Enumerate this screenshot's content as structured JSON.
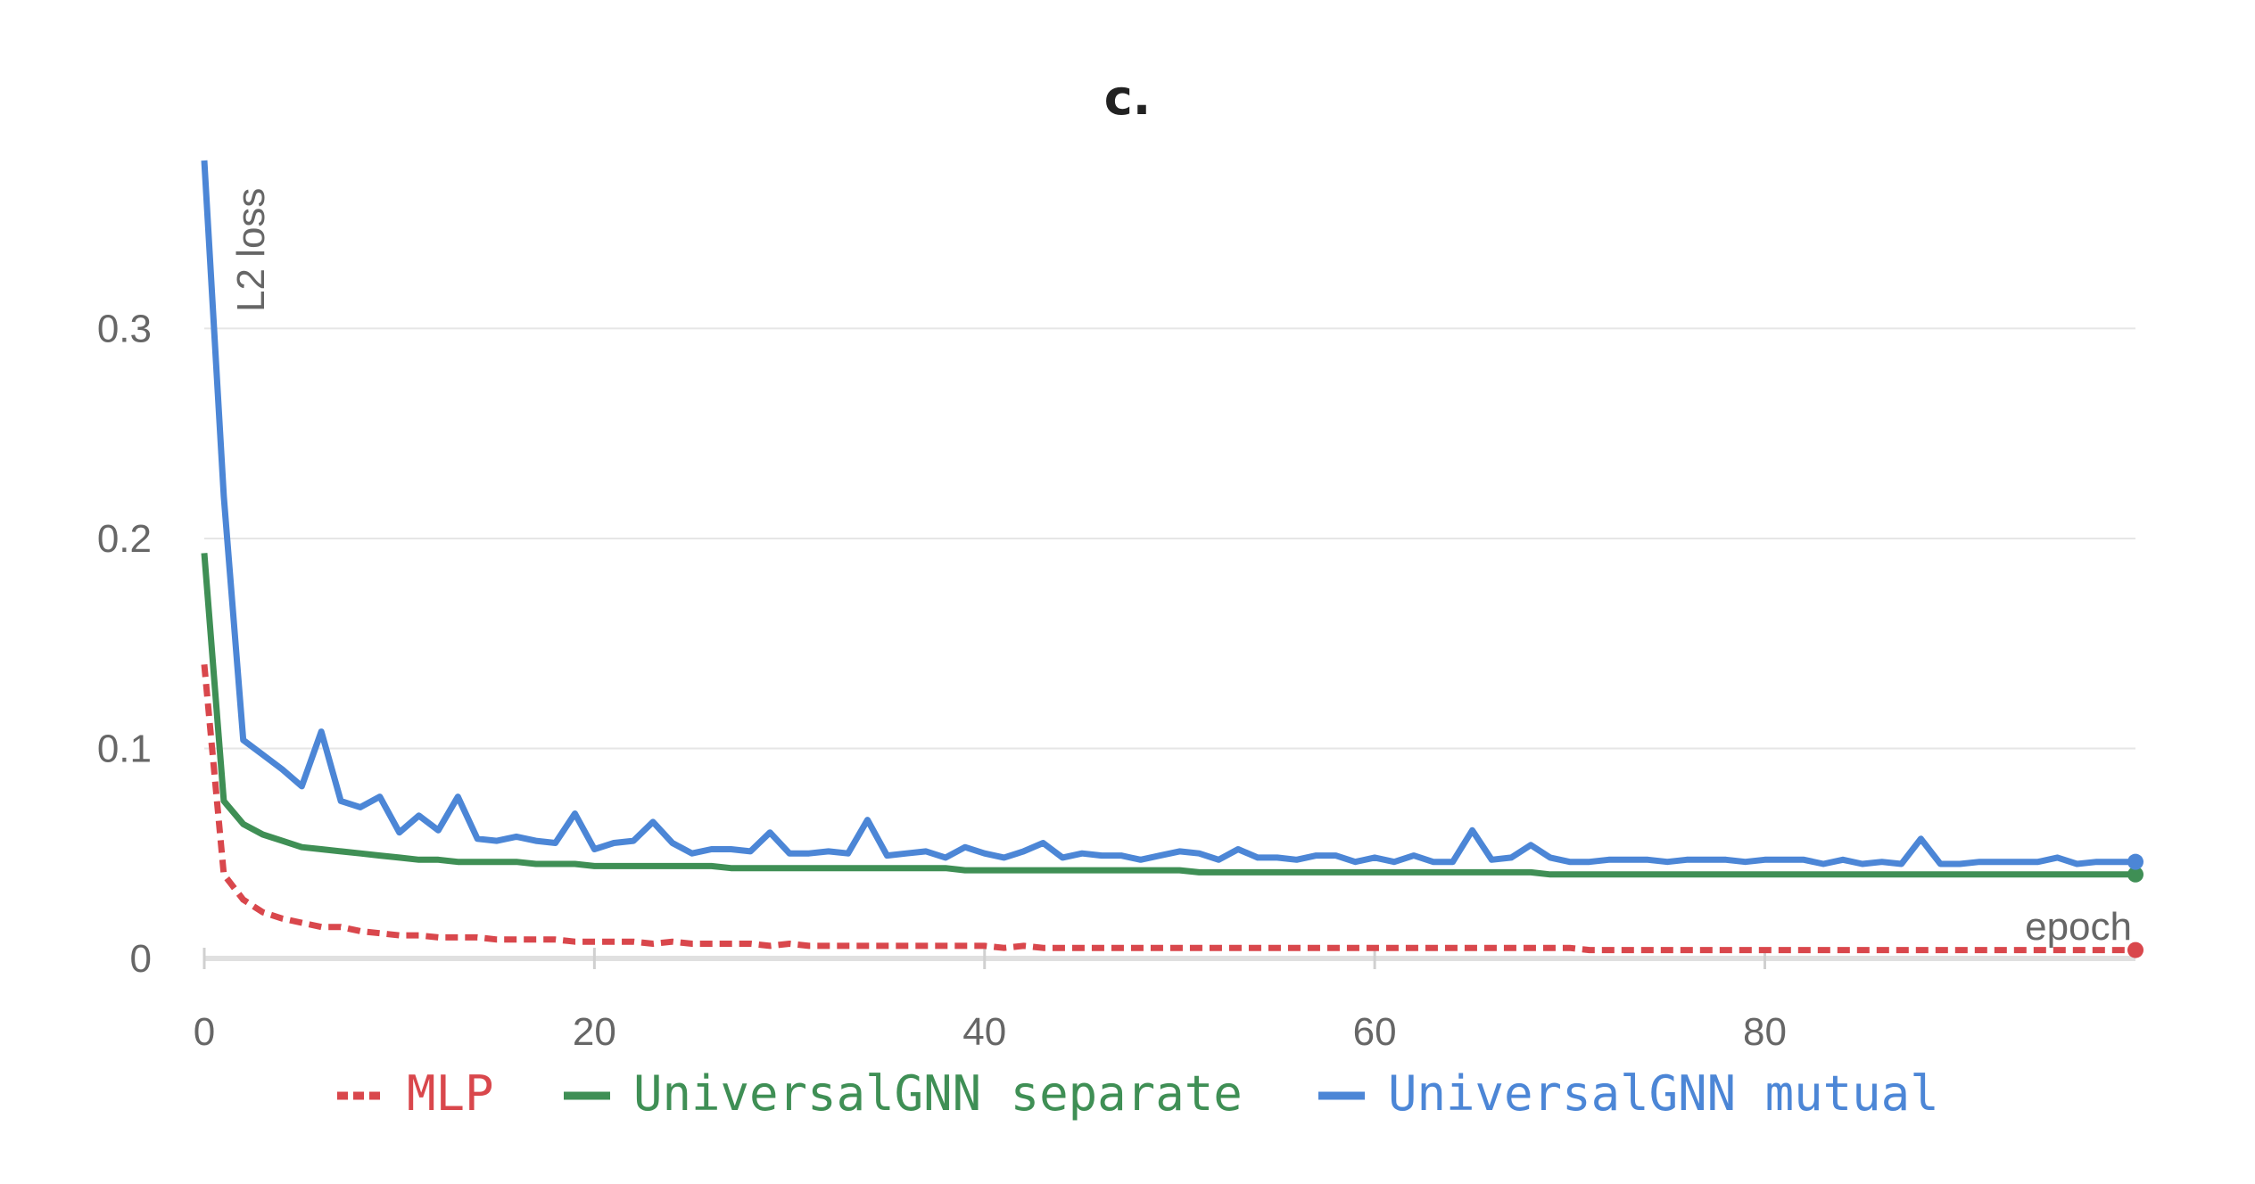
{
  "chart_data": {
    "type": "line",
    "title": "c.",
    "xlabel": "epoch",
    "ylabel": "L2 loss",
    "xlim": [
      0,
      99
    ],
    "ylim": [
      0,
      0.38
    ],
    "xticks": [
      0,
      20,
      40,
      60,
      80
    ],
    "xtick_labels": [
      "0",
      "20",
      "40",
      "60",
      "80"
    ],
    "yticks": [
      0,
      0.1,
      0.2,
      0.3
    ],
    "ytick_labels": [
      "0",
      "0.1",
      "0.2",
      "0.3"
    ],
    "grid": true,
    "legend_position": "bottom",
    "series": [
      {
        "name": "MLP",
        "color": "#d9474c",
        "dash": "dotted",
        "values": [
          0.14,
          0.04,
          0.028,
          0.022,
          0.019,
          0.017,
          0.015,
          0.015,
          0.013,
          0.012,
          0.011,
          0.011,
          0.01,
          0.01,
          0.01,
          0.009,
          0.009,
          0.009,
          0.009,
          0.008,
          0.008,
          0.008,
          0.008,
          0.007,
          0.008,
          0.007,
          0.007,
          0.007,
          0.007,
          0.006,
          0.007,
          0.006,
          0.006,
          0.006,
          0.006,
          0.006,
          0.006,
          0.006,
          0.006,
          0.006,
          0.006,
          0.005,
          0.006,
          0.005,
          0.005,
          0.005,
          0.005,
          0.005,
          0.005,
          0.005,
          0.005,
          0.005,
          0.005,
          0.005,
          0.005,
          0.005,
          0.005,
          0.005,
          0.005,
          0.005,
          0.005,
          0.005,
          0.005,
          0.005,
          0.005,
          0.005,
          0.005,
          0.005,
          0.005,
          0.005,
          0.005,
          0.004,
          0.004,
          0.004,
          0.004,
          0.004,
          0.004,
          0.004,
          0.004,
          0.004,
          0.004,
          0.004,
          0.004,
          0.004,
          0.004,
          0.004,
          0.004,
          0.004,
          0.004,
          0.004,
          0.004,
          0.004,
          0.004,
          0.004,
          0.004,
          0.004,
          0.004,
          0.004,
          0.004,
          0.004
        ]
      },
      {
        "name": "UniversalGNN separate",
        "color": "#3f8f55",
        "dash": "solid",
        "values": [
          0.193,
          0.075,
          0.064,
          0.059,
          0.056,
          0.053,
          0.052,
          0.051,
          0.05,
          0.049,
          0.048,
          0.047,
          0.047,
          0.046,
          0.046,
          0.046,
          0.046,
          0.045,
          0.045,
          0.045,
          0.044,
          0.044,
          0.044,
          0.044,
          0.044,
          0.044,
          0.044,
          0.043,
          0.043,
          0.043,
          0.043,
          0.043,
          0.043,
          0.043,
          0.043,
          0.043,
          0.043,
          0.043,
          0.043,
          0.042,
          0.042,
          0.042,
          0.042,
          0.042,
          0.042,
          0.042,
          0.042,
          0.042,
          0.042,
          0.042,
          0.042,
          0.041,
          0.041,
          0.041,
          0.041,
          0.041,
          0.041,
          0.041,
          0.041,
          0.041,
          0.041,
          0.041,
          0.041,
          0.041,
          0.041,
          0.041,
          0.041,
          0.041,
          0.041,
          0.04,
          0.04,
          0.04,
          0.04,
          0.04,
          0.04,
          0.04,
          0.04,
          0.04,
          0.04,
          0.04,
          0.04,
          0.04,
          0.04,
          0.04,
          0.04,
          0.04,
          0.04,
          0.04,
          0.04,
          0.04,
          0.04,
          0.04,
          0.04,
          0.04,
          0.04,
          0.04,
          0.04,
          0.04,
          0.04,
          0.04
        ]
      },
      {
        "name": "UniversalGNN mutual",
        "color": "#4c86d6",
        "dash": "solid",
        "values": [
          0.38,
          0.22,
          0.104,
          0.097,
          0.09,
          0.082,
          0.108,
          0.075,
          0.072,
          0.077,
          0.06,
          0.068,
          0.061,
          0.077,
          0.057,
          0.056,
          0.058,
          0.056,
          0.055,
          0.069,
          0.052,
          0.055,
          0.056,
          0.065,
          0.055,
          0.05,
          0.052,
          0.052,
          0.051,
          0.06,
          0.05,
          0.05,
          0.051,
          0.05,
          0.066,
          0.049,
          0.05,
          0.051,
          0.048,
          0.053,
          0.05,
          0.048,
          0.051,
          0.055,
          0.048,
          0.05,
          0.049,
          0.049,
          0.047,
          0.049,
          0.051,
          0.05,
          0.047,
          0.052,
          0.048,
          0.048,
          0.047,
          0.049,
          0.049,
          0.046,
          0.048,
          0.046,
          0.049,
          0.046,
          0.046,
          0.061,
          0.047,
          0.048,
          0.054,
          0.048,
          0.046,
          0.046,
          0.047,
          0.047,
          0.047,
          0.046,
          0.047,
          0.047,
          0.047,
          0.046,
          0.047,
          0.047,
          0.047,
          0.045,
          0.047,
          0.045,
          0.046,
          0.045,
          0.057,
          0.045,
          0.045,
          0.046,
          0.046,
          0.046,
          0.046,
          0.048,
          0.045,
          0.046,
          0.046,
          0.046
        ]
      }
    ]
  }
}
